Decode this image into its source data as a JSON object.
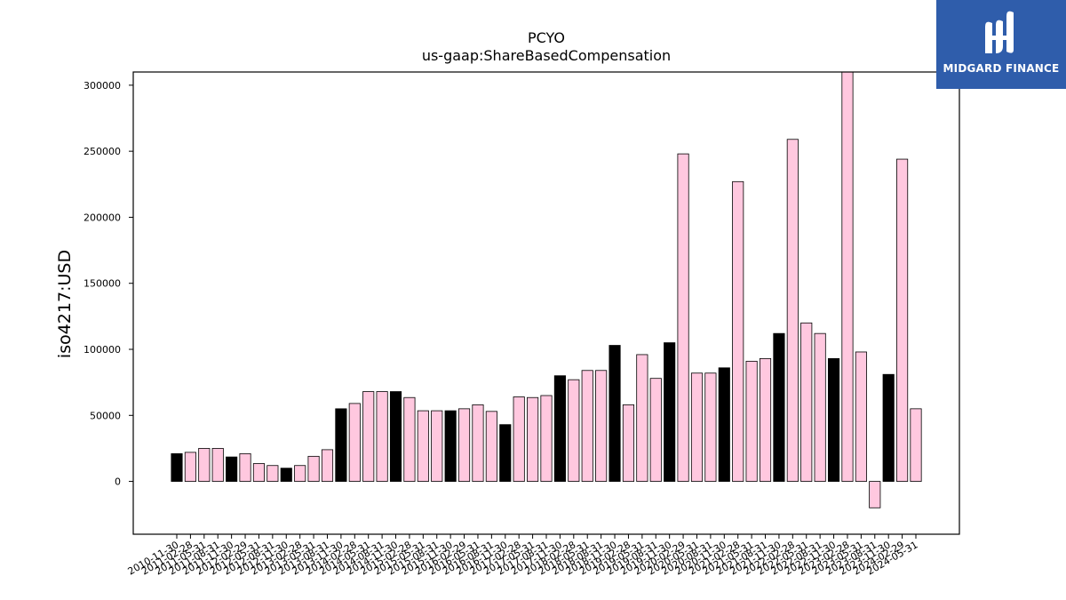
{
  "chart_data": {
    "type": "bar",
    "title": "PCYO",
    "subtitle": "us-gaap:ShareBasedCompensation",
    "xlabel": "",
    "ylabel": "iso4217:USD",
    "ylim": [
      -40000,
      310000
    ],
    "yticks": [
      0,
      50000,
      100000,
      150000,
      200000,
      250000,
      300000
    ],
    "grid": false,
    "colors": {
      "highlight": "#000000",
      "normal": "#ffc8df",
      "edge": "#000000"
    },
    "categories": [
      "2010-11-30",
      "2011-02-28",
      "2011-05-31",
      "2011-08-31",
      "2011-11-30",
      "2012-02-29",
      "2012-05-31",
      "2012-08-31",
      "2012-11-30",
      "2013-02-28",
      "2013-05-31",
      "2013-08-31",
      "2013-11-30",
      "2014-02-28",
      "2014-05-31",
      "2014-08-31",
      "2014-11-30",
      "2015-02-28",
      "2015-05-31",
      "2015-08-31",
      "2015-11-30",
      "2016-02-29",
      "2016-05-31",
      "2016-08-31",
      "2016-11-30",
      "2017-02-28",
      "2017-05-31",
      "2017-08-31",
      "2017-11-30",
      "2018-02-28",
      "2018-05-31",
      "2018-08-31",
      "2018-11-30",
      "2019-02-28",
      "2019-05-31",
      "2019-08-31",
      "2019-11-30",
      "2020-02-29",
      "2020-05-31",
      "2020-08-31",
      "2020-11-30",
      "2021-02-28",
      "2021-05-31",
      "2021-08-31",
      "2021-11-30",
      "2022-02-28",
      "2022-05-31",
      "2022-08-31",
      "2022-11-30",
      "2023-02-28",
      "2023-05-31",
      "2023-08-31",
      "2023-11-30",
      "2024-02-29",
      "2024-05-31"
    ],
    "values": [
      21000,
      22000,
      25000,
      25000,
      18500,
      21000,
      13500,
      12000,
      10000,
      12000,
      19000,
      24000,
      55000,
      59000,
      68000,
      68000,
      68000,
      63500,
      53500,
      53500,
      53500,
      55000,
      58000,
      53000,
      43000,
      64000,
      63500,
      65000,
      80000,
      77000,
      84000,
      84000,
      103000,
      58000,
      96000,
      78000,
      105000,
      248000,
      82000,
      82000,
      86000,
      227000,
      91000,
      93000,
      112000,
      259000,
      120000,
      112000,
      93000,
      310000,
      98000,
      -20000,
      81000,
      244000,
      55000
    ],
    "highlight": [
      true,
      false,
      false,
      false,
      true,
      false,
      false,
      false,
      true,
      false,
      false,
      false,
      true,
      false,
      false,
      false,
      true,
      false,
      false,
      false,
      true,
      false,
      false,
      false,
      true,
      false,
      false,
      false,
      true,
      false,
      false,
      false,
      true,
      false,
      false,
      false,
      true,
      false,
      false,
      false,
      true,
      false,
      false,
      false,
      true,
      false,
      false,
      false,
      true,
      false,
      false,
      false,
      true,
      false,
      false
    ]
  },
  "logo": {
    "text": "MIDGARD FINANCE",
    "icon": "midgard-finance-logo-icon"
  }
}
